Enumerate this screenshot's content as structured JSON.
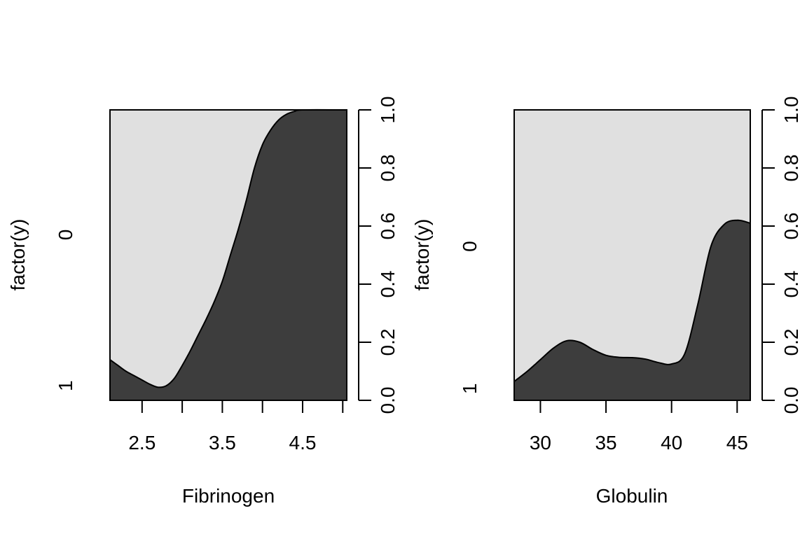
{
  "chart_data": [
    {
      "type": "area",
      "subtype": "conditional-density",
      "xlabel": "Fibrinogen",
      "ylabel": "factor(y)",
      "xlim": [
        2.1,
        5.05
      ],
      "ylim": [
        0,
        1
      ],
      "x_ticks": [
        {
          "value": 2.5,
          "label": "2.5"
        },
        {
          "value": 3.0,
          "label": ""
        },
        {
          "value": 3.5,
          "label": "3.5"
        },
        {
          "value": 4.0,
          "label": ""
        },
        {
          "value": 4.5,
          "label": "4.5"
        },
        {
          "value": 5.0,
          "label": ""
        }
      ],
      "right_ticks": [
        "0.0",
        "0.2",
        "0.4",
        "0.6",
        "0.8",
        "1.0"
      ],
      "factor_levels": [
        {
          "label": "1",
          "mid": 0.05
        },
        {
          "label": "0",
          "mid": 0.57
        }
      ],
      "boundary": [
        [
          2.1,
          0.14
        ],
        [
          2.2,
          0.12
        ],
        [
          2.3,
          0.1
        ],
        [
          2.4,
          0.085
        ],
        [
          2.5,
          0.07
        ],
        [
          2.6,
          0.055
        ],
        [
          2.7,
          0.045
        ],
        [
          2.8,
          0.05
        ],
        [
          2.9,
          0.075
        ],
        [
          3.0,
          0.12
        ],
        [
          3.1,
          0.17
        ],
        [
          3.2,
          0.225
        ],
        [
          3.3,
          0.28
        ],
        [
          3.4,
          0.34
        ],
        [
          3.5,
          0.41
        ],
        [
          3.6,
          0.5
        ],
        [
          3.7,
          0.59
        ],
        [
          3.8,
          0.69
        ],
        [
          3.9,
          0.8
        ],
        [
          4.0,
          0.88
        ],
        [
          4.1,
          0.93
        ],
        [
          4.2,
          0.965
        ],
        [
          4.3,
          0.985
        ],
        [
          4.4,
          0.995
        ],
        [
          4.5,
          1.0
        ],
        [
          5.05,
          1.0
        ]
      ],
      "colors": {
        "level_1": "#3d3d3d",
        "level_0": "#e0e0e0"
      }
    },
    {
      "type": "area",
      "subtype": "conditional-density",
      "xlabel": "Globulin",
      "ylabel": "factor(y)",
      "xlim": [
        28,
        46
      ],
      "ylim": [
        0,
        1
      ],
      "x_ticks": [
        {
          "value": 30,
          "label": "30"
        },
        {
          "value": 35,
          "label": "35"
        },
        {
          "value": 40,
          "label": "40"
        },
        {
          "value": 45,
          "label": "45"
        }
      ],
      "right_ticks": [
        "0.0",
        "0.2",
        "0.4",
        "0.6",
        "0.8",
        "1.0"
      ],
      "factor_levels": [
        {
          "label": "1",
          "mid": 0.04
        },
        {
          "label": "0",
          "mid": 0.53
        }
      ],
      "boundary": [
        [
          28,
          0.065
        ],
        [
          29,
          0.1
        ],
        [
          30,
          0.14
        ],
        [
          31,
          0.18
        ],
        [
          32,
          0.205
        ],
        [
          33,
          0.2
        ],
        [
          34,
          0.175
        ],
        [
          35,
          0.155
        ],
        [
          36,
          0.148
        ],
        [
          37,
          0.147
        ],
        [
          38,
          0.142
        ],
        [
          39,
          0.13
        ],
        [
          40,
          0.125
        ],
        [
          41,
          0.16
        ],
        [
          42,
          0.33
        ],
        [
          43,
          0.53
        ],
        [
          44,
          0.605
        ],
        [
          45,
          0.62
        ],
        [
          46,
          0.61
        ]
      ],
      "colors": {
        "level_1": "#3d3d3d",
        "level_0": "#e0e0e0"
      }
    }
  ]
}
